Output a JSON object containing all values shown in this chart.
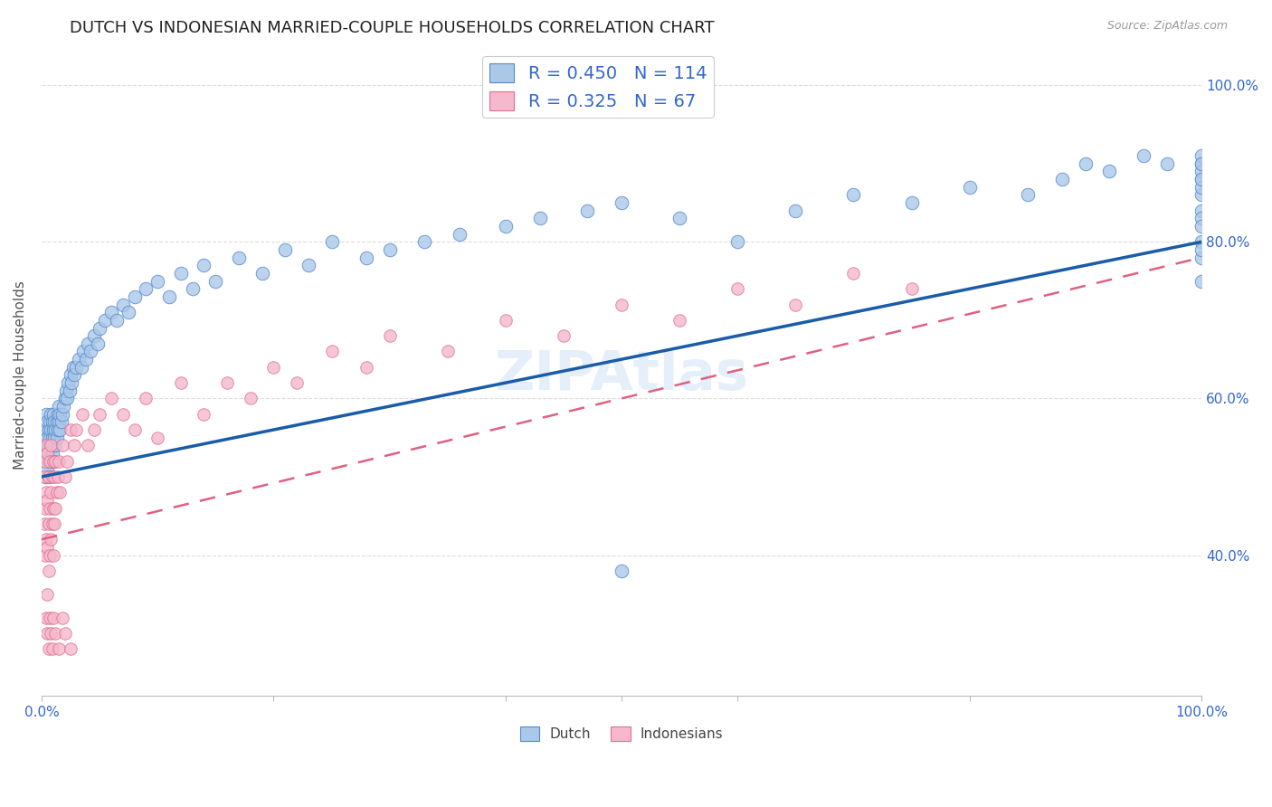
{
  "title": "DUTCH VS INDONESIAN MARRIED-COUPLE HOUSEHOLDS CORRELATION CHART",
  "source": "Source: ZipAtlas.com",
  "ylabel": "Married-couple Households",
  "xlim": [
    0.0,
    1.0
  ],
  "ylim": [
    0.22,
    1.04
  ],
  "dutch_R": 0.45,
  "dutch_N": 114,
  "indonesian_R": 0.325,
  "indonesian_N": 67,
  "watermark": "ZIPAtlas",
  "dutch_color": "#aac8e8",
  "dutch_edge_color": "#5588cc",
  "dutch_line_color": "#1a5ca8",
  "indonesian_color": "#f5b8cc",
  "indonesian_edge_color": "#e07090",
  "indonesian_line_color": "#e06080",
  "axis_label_color": "#3366cc",
  "title_fontsize": 13,
  "dutch_x": [
    0.002,
    0.003,
    0.003,
    0.004,
    0.004,
    0.004,
    0.005,
    0.005,
    0.005,
    0.005,
    0.006,
    0.006,
    0.006,
    0.007,
    0.007,
    0.007,
    0.008,
    0.008,
    0.008,
    0.009,
    0.009,
    0.009,
    0.01,
    0.01,
    0.01,
    0.01,
    0.011,
    0.011,
    0.012,
    0.012,
    0.013,
    0.013,
    0.014,
    0.014,
    0.015,
    0.015,
    0.016,
    0.016,
    0.017,
    0.018,
    0.019,
    0.02,
    0.021,
    0.022,
    0.023,
    0.024,
    0.025,
    0.026,
    0.027,
    0.028,
    0.03,
    0.032,
    0.034,
    0.036,
    0.038,
    0.04,
    0.042,
    0.045,
    0.048,
    0.05,
    0.055,
    0.06,
    0.065,
    0.07,
    0.075,
    0.08,
    0.09,
    0.1,
    0.11,
    0.12,
    0.13,
    0.14,
    0.15,
    0.17,
    0.19,
    0.21,
    0.23,
    0.25,
    0.28,
    0.3,
    0.33,
    0.36,
    0.4,
    0.43,
    0.47,
    0.5,
    0.5,
    0.55,
    0.6,
    0.65,
    0.7,
    0.75,
    0.8,
    0.85,
    0.88,
    0.9,
    0.92,
    0.95,
    0.97,
    1.0,
    1.0,
    1.0,
    1.0,
    1.0,
    1.0,
    1.0,
    1.0,
    1.0,
    1.0,
    1.0,
    1.0,
    1.0,
    1.0,
    1.0
  ],
  "dutch_y": [
    0.54,
    0.5,
    0.56,
    0.52,
    0.58,
    0.54,
    0.53,
    0.55,
    0.57,
    0.51,
    0.54,
    0.56,
    0.5,
    0.55,
    0.57,
    0.52,
    0.54,
    0.56,
    0.58,
    0.53,
    0.55,
    0.57,
    0.54,
    0.56,
    0.52,
    0.58,
    0.55,
    0.57,
    0.54,
    0.56,
    0.55,
    0.57,
    0.56,
    0.58,
    0.57,
    0.59,
    0.56,
    0.58,
    0.57,
    0.58,
    0.59,
    0.6,
    0.61,
    0.6,
    0.62,
    0.61,
    0.63,
    0.62,
    0.64,
    0.63,
    0.64,
    0.65,
    0.64,
    0.66,
    0.65,
    0.67,
    0.66,
    0.68,
    0.67,
    0.69,
    0.7,
    0.71,
    0.7,
    0.72,
    0.71,
    0.73,
    0.74,
    0.75,
    0.73,
    0.76,
    0.74,
    0.77,
    0.75,
    0.78,
    0.76,
    0.79,
    0.77,
    0.8,
    0.78,
    0.79,
    0.8,
    0.81,
    0.82,
    0.83,
    0.84,
    0.85,
    0.38,
    0.83,
    0.8,
    0.84,
    0.86,
    0.85,
    0.87,
    0.86,
    0.88,
    0.9,
    0.89,
    0.91,
    0.9,
    0.8,
    0.78,
    0.86,
    0.84,
    0.88,
    0.9,
    0.87,
    0.83,
    0.89,
    0.91,
    0.79,
    0.75,
    0.82,
    0.88,
    0.9
  ],
  "indonesian_x": [
    0.002,
    0.002,
    0.003,
    0.003,
    0.003,
    0.004,
    0.004,
    0.004,
    0.005,
    0.005,
    0.005,
    0.005,
    0.006,
    0.006,
    0.006,
    0.007,
    0.007,
    0.007,
    0.008,
    0.008,
    0.008,
    0.009,
    0.009,
    0.01,
    0.01,
    0.01,
    0.011,
    0.011,
    0.012,
    0.012,
    0.013,
    0.014,
    0.015,
    0.016,
    0.018,
    0.02,
    0.022,
    0.025,
    0.028,
    0.03,
    0.035,
    0.04,
    0.045,
    0.05,
    0.06,
    0.07,
    0.08,
    0.09,
    0.1,
    0.12,
    0.14,
    0.16,
    0.18,
    0.2,
    0.22,
    0.25,
    0.28,
    0.3,
    0.35,
    0.4,
    0.45,
    0.5,
    0.55,
    0.6,
    0.65,
    0.7,
    0.75
  ],
  "indonesian_y": [
    0.5,
    0.44,
    0.52,
    0.46,
    0.4,
    0.54,
    0.48,
    0.42,
    0.53,
    0.47,
    0.41,
    0.35,
    0.5,
    0.44,
    0.38,
    0.52,
    0.46,
    0.4,
    0.54,
    0.48,
    0.42,
    0.5,
    0.44,
    0.52,
    0.46,
    0.4,
    0.5,
    0.44,
    0.52,
    0.46,
    0.48,
    0.5,
    0.52,
    0.48,
    0.54,
    0.5,
    0.52,
    0.56,
    0.54,
    0.56,
    0.58,
    0.54,
    0.56,
    0.58,
    0.6,
    0.58,
    0.56,
    0.6,
    0.55,
    0.62,
    0.58,
    0.62,
    0.6,
    0.64,
    0.62,
    0.66,
    0.64,
    0.68,
    0.66,
    0.7,
    0.68,
    0.72,
    0.7,
    0.74,
    0.72,
    0.76,
    0.74
  ],
  "indonesian_extra_x": [
    0.004,
    0.005,
    0.006,
    0.007,
    0.008,
    0.009,
    0.01,
    0.012,
    0.015,
    0.018,
    0.02,
    0.025
  ],
  "indonesian_extra_y": [
    0.32,
    0.3,
    0.28,
    0.32,
    0.3,
    0.28,
    0.32,
    0.3,
    0.28,
    0.32,
    0.3,
    0.28
  ]
}
